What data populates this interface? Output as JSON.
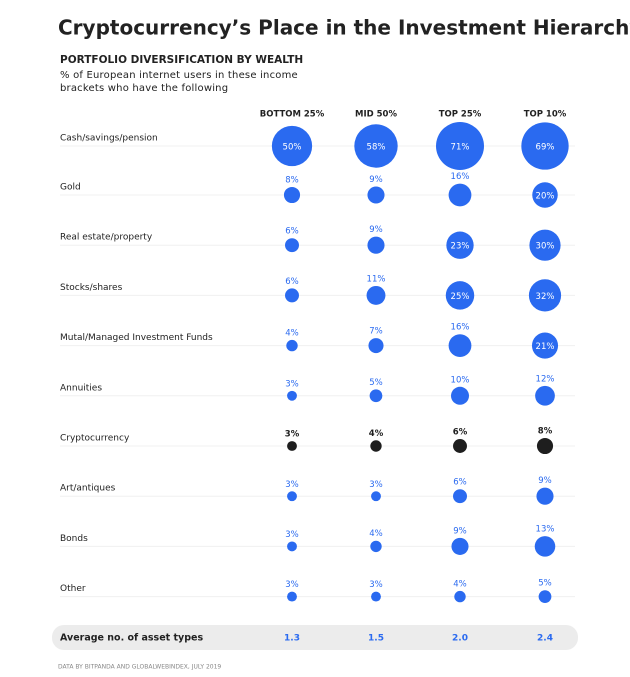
{
  "chart_data": {
    "type": "bubble_grid",
    "title": "Cryptocurrency’s Place in the Investment Hierarchy",
    "subtitle": "PORTFOLIO DIVERSIFICATION BY WEALTH",
    "description": "% of European internet users in these income brackets who have the following",
    "categories": [
      "Cash/savings/pension",
      "Gold",
      "Real estate/property",
      "Stocks/shares",
      "Mutal/Managed Investment Funds",
      "Annuities",
      "Cryptocurrency",
      "Art/antiques",
      "Bonds",
      "Other"
    ],
    "series": [
      {
        "name": "BOTTOM 25%",
        "color": "#2a6af0",
        "values": [
          50,
          8,
          6,
          6,
          4,
          3,
          3,
          3,
          3,
          3
        ],
        "value_labels": [
          "50%",
          "8%",
          "6%",
          "6%",
          "4%",
          "3%",
          "3%",
          "3%",
          "3%",
          "3%"
        ]
      },
      {
        "name": "MID 50%",
        "color": "#2a6af0",
        "values": [
          58,
          9,
          9,
          11,
          7,
          5,
          4,
          3,
          4,
          3
        ],
        "value_labels": [
          "58%",
          "9%",
          "9%",
          "11%",
          "7%",
          "5%",
          "4%",
          "3%",
          "4%",
          "3%"
        ]
      },
      {
        "name": "TOP 25%",
        "color": "#2a6af0",
        "values": [
          71,
          16,
          23,
          25,
          16,
          10,
          6,
          6,
          9,
          4
        ],
        "value_labels": [
          "71%",
          "16%",
          "23%",
          "25%",
          "16%",
          "10%",
          "6%",
          "6%",
          "9%",
          "4%"
        ]
      },
      {
        "name": "TOP 10%",
        "color": "#2a6af0",
        "values": [
          69,
          20,
          30,
          32,
          21,
          12,
          8,
          9,
          13,
          5
        ],
        "value_labels": [
          "69%",
          "20%",
          "30%",
          "32%",
          "21%",
          "12%",
          "8%",
          "9%",
          "13%",
          "5%"
        ]
      }
    ],
    "highlight": {
      "category": "Cryptocurrency",
      "color": "#1e1e1e"
    },
    "average": {
      "label": "Average no. of asset types",
      "values": [
        1.3,
        1.5,
        2.0,
        2.4
      ],
      "value_labels": [
        "1.3",
        "1.5",
        "2.0",
        "2.4"
      ]
    },
    "source": "DATA BY BITPANDA AND GLOBALWEBINDEX, JULY 2019"
  }
}
